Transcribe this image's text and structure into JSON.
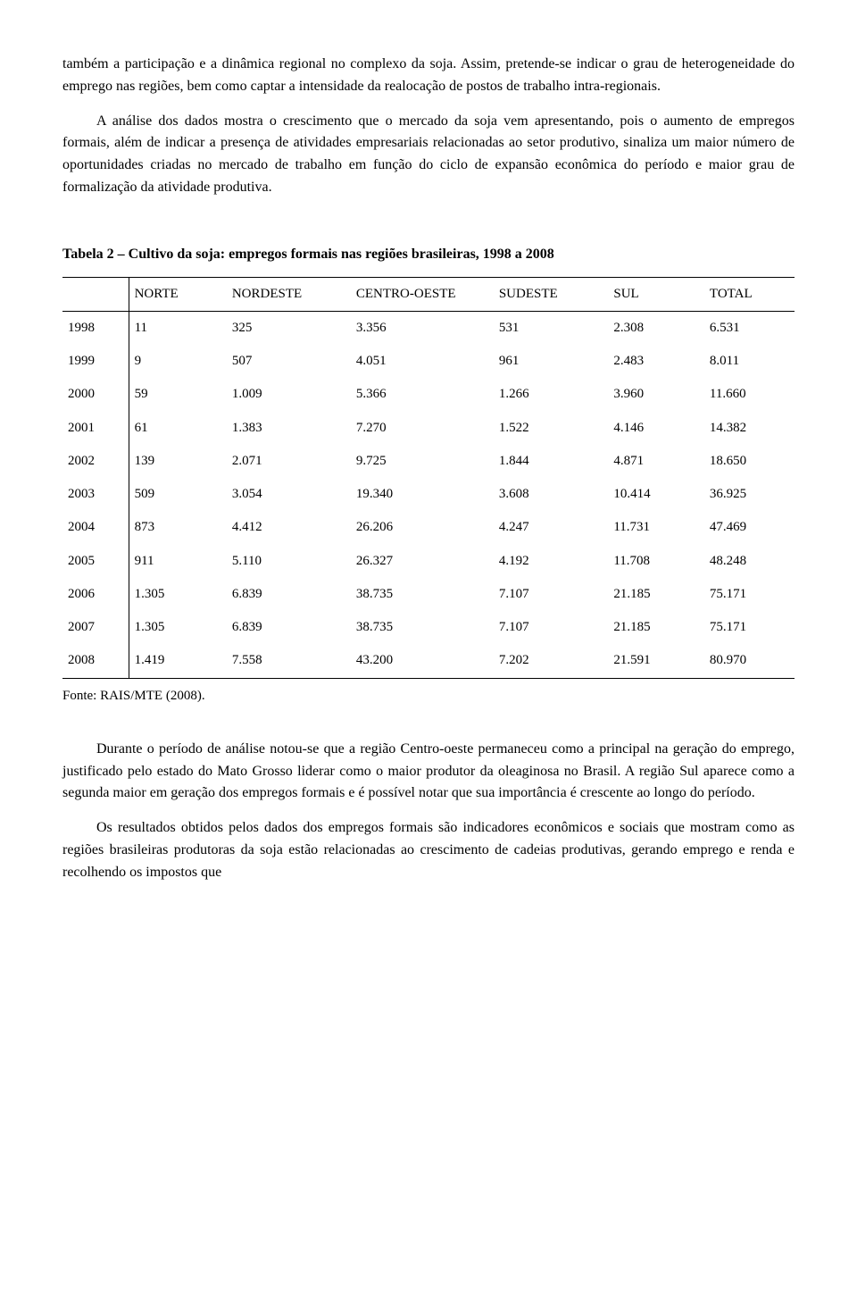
{
  "paragraphs": {
    "p1": "também a participação e a dinâmica regional no complexo da soja. Assim, pretende-se indicar o grau de heterogeneidade do emprego nas regiões, bem como captar a intensidade da realocação de postos de trabalho intra-regionais.",
    "p2": "A análise dos dados mostra o crescimento que o mercado da soja vem apresentando, pois o aumento de empregos formais, além de indicar a presença de atividades empresariais relacionadas ao setor produtivo, sinaliza um maior número de oportunidades criadas no mercado de trabalho em função do ciclo de expansão econômica do período e maior grau de formalização da atividade produtiva.",
    "p3": "Durante o período de análise notou-se que a região Centro-oeste permaneceu como a principal na geração do emprego, justificado pelo estado do Mato Grosso liderar como o maior produtor da oleaginosa no Brasil. A região Sul aparece como a segunda maior em geração dos empregos formais e é possível notar que sua importância é crescente ao longo do período.",
    "p4": "Os resultados obtidos pelos dados dos empregos formais são indicadores econômicos e sociais que mostram como as regiões brasileiras produtoras da soja estão relacionadas ao crescimento de cadeias produtivas, gerando emprego e renda e recolhendo os impostos que"
  },
  "table": {
    "title": "Tabela 2 – Cultivo da soja: empregos formais nas regiões brasileiras, 1998 a 2008",
    "columns": [
      "",
      "NORTE",
      "NORDESTE",
      "CENTRO-OESTE",
      "SUDESTE",
      "SUL",
      "TOTAL"
    ],
    "rows": [
      [
        "1998",
        "11",
        "325",
        "3.356",
        "531",
        "2.308",
        "6.531"
      ],
      [
        "1999",
        "9",
        "507",
        "4.051",
        "961",
        "2.483",
        "8.011"
      ],
      [
        "2000",
        "59",
        "1.009",
        "5.366",
        "1.266",
        "3.960",
        "11.660"
      ],
      [
        "2001",
        "61",
        "1.383",
        "7.270",
        "1.522",
        "4.146",
        "14.382"
      ],
      [
        "2002",
        "139",
        "2.071",
        "9.725",
        "1.844",
        "4.871",
        "18.650"
      ],
      [
        "2003",
        "509",
        "3.054",
        "19.340",
        "3.608",
        "10.414",
        "36.925"
      ],
      [
        "2004",
        "873",
        "4.412",
        "26.206",
        "4.247",
        "11.731",
        "47.469"
      ],
      [
        "2005",
        "911",
        "5.110",
        "26.327",
        "4.192",
        "11.708",
        "48.248"
      ],
      [
        "2006",
        "1.305",
        "6.839",
        "38.735",
        "7.107",
        "21.185",
        "75.171"
      ],
      [
        "2007",
        "1.305",
        "6.839",
        "38.735",
        "7.107",
        "21.185",
        "75.171"
      ],
      [
        "2008",
        "1.419",
        "7.558",
        "43.200",
        "7.202",
        "21.591",
        "80.970"
      ]
    ],
    "source": "Fonte: RAIS/MTE (2008)."
  }
}
